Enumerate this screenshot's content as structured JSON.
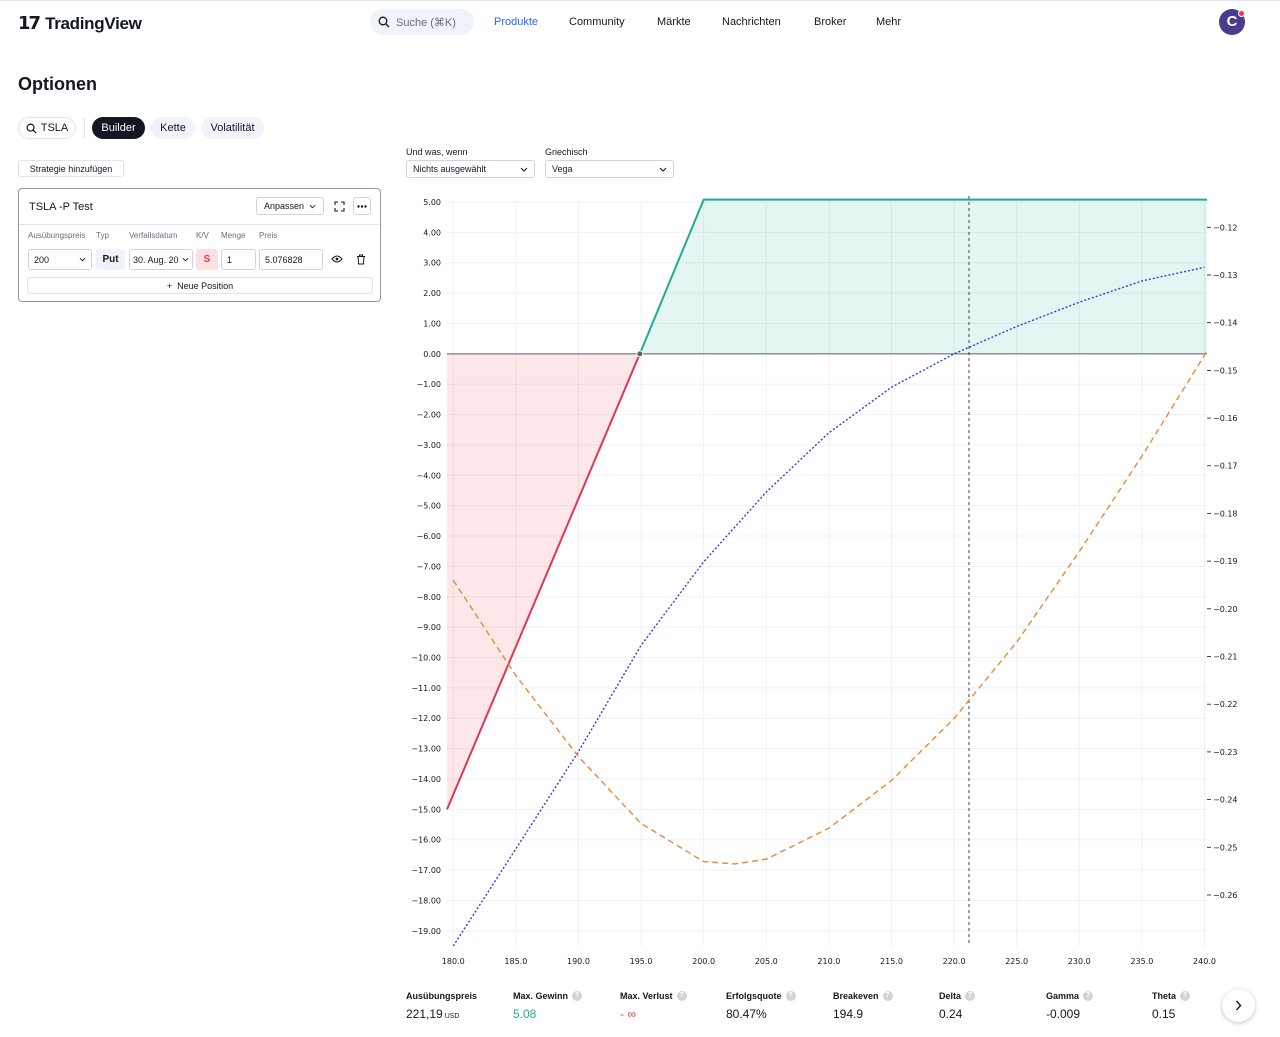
{
  "nav": {
    "logo_text": "TradingView",
    "search_placeholder": "Suche (⌘K)",
    "items": [
      "Produkte",
      "Community",
      "Märkte",
      "Nachrichten",
      "Broker",
      "Mehr"
    ],
    "active_item": "Produkte",
    "avatar_letter": "C"
  },
  "page": {
    "title": "Optionen",
    "ticker": "TSLA",
    "tabs": [
      "Builder",
      "Kette",
      "Volatilität"
    ],
    "active_tab": "Builder",
    "add_strategy": "Strategie hinzufügen"
  },
  "controls": {
    "whatif_label": "Und was, wenn",
    "whatif_value": "Nichts ausgewählt",
    "greek_label": "Griechisch",
    "greek_value": "Vega"
  },
  "strategy": {
    "title": "TSLA -P Test",
    "customize": "Anpassen",
    "columns": [
      "Ausübungspreis",
      "Typ",
      "Verfallsdatum",
      "K/V",
      "Menge",
      "Preis"
    ],
    "position": {
      "strike": "200",
      "type": "Put",
      "expiry": "30. Aug. 20",
      "side": "S",
      "quantity": "1",
      "price": "5.076828"
    },
    "new_position": "Neue Position"
  },
  "chart_data": {
    "type": "line",
    "x_ticks": [
      "180.0",
      "185.0",
      "190.0",
      "195.0",
      "200.0",
      "205.0",
      "210.0",
      "215.0",
      "220.0",
      "225.0",
      "230.0",
      "235.0",
      "240.0"
    ],
    "y_ticks": [
      "5.00",
      "4.00",
      "3.00",
      "2.00",
      "1.00",
      "0.00",
      "−1.00",
      "−2.00",
      "−3.00",
      "−4.00",
      "−5.00",
      "−6.00",
      "−7.00",
      "−8.00",
      "−9.00",
      "−10.00",
      "−11.00",
      "−12.00",
      "−13.00",
      "−14.00",
      "−15.00",
      "−16.00",
      "−17.00",
      "−18.00",
      "−19.00"
    ],
    "y2_ticks": [
      "−0.12",
      "−0.13",
      "−0.14",
      "−0.15",
      "−0.16",
      "−0.17",
      "−0.18",
      "−0.19",
      "−0.20",
      "−0.21",
      "−0.22",
      "−0.23",
      "−0.24",
      "−0.25",
      "−0.26"
    ],
    "xlim": [
      179.5,
      240.2
    ],
    "ylim": [
      -19.5,
      5.0
    ],
    "y2lim": [
      -0.2707,
      -0.1147
    ],
    "current_price": 221.19,
    "breakeven": 194.9,
    "series": [
      {
        "style": "solid",
        "color": "#e0365a",
        "x": [
          179.5,
          194.9
        ],
        "y": [
          -15.0,
          0.0
        ]
      },
      {
        "style": "solid",
        "color": "#22ab94",
        "x": [
          194.9,
          200.0,
          240.2
        ],
        "y": [
          0.0,
          5.08,
          5.08
        ]
      },
      {
        "style": "dotted",
        "color": "#2a45c9",
        "x": [
          180,
          185,
          190,
          195,
          200,
          205,
          210,
          215,
          220,
          225,
          230,
          235,
          240
        ],
        "y": [
          -19.5,
          -16.3,
          -13.1,
          -9.6,
          -6.85,
          -4.55,
          -2.6,
          -1.1,
          0.0,
          0.9,
          1.7,
          2.4,
          2.85
        ]
      },
      {
        "style": "dashed",
        "color": "#e8893a",
        "axis": "right",
        "x": [
          180,
          185,
          190,
          195,
          200,
          202.5,
          205,
          210,
          215,
          220,
          225,
          230,
          235,
          240.2
        ],
        "y": [
          -0.194,
          -0.214,
          -0.231,
          -0.245,
          -0.253,
          -0.2535,
          -0.2525,
          -0.246,
          -0.236,
          -0.223,
          -0.207,
          -0.188,
          -0.168,
          -0.146
        ]
      }
    ]
  },
  "stats": [
    {
      "label": "Ausübungspreis",
      "value": "221,19",
      "unit": "USD",
      "help": false
    },
    {
      "label": "Max. Gewinn",
      "value": "5.08",
      "help": true,
      "color": "green"
    },
    {
      "label": "Max. Verlust",
      "value": "- ∞",
      "help": true,
      "color": "red"
    },
    {
      "label": "Erfolgsquote",
      "value": "80.47%",
      "help": true
    },
    {
      "label": "Breakeven",
      "value": "194.9",
      "help": true
    },
    {
      "label": "Delta",
      "value": "0.24",
      "help": true
    },
    {
      "label": "Gamma",
      "value": "-0.009",
      "help": true
    },
    {
      "label": "Theta",
      "value": "0.15",
      "help": true
    }
  ]
}
